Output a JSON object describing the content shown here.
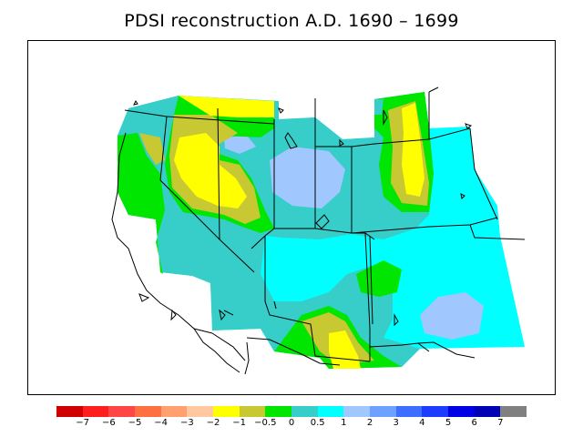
{
  "title": "PDSI reconstruction A.D. 1690 – 1699",
  "colorbar": {
    "colors": [
      "#d00000",
      "#ff1e1e",
      "#ff4646",
      "#ff7040",
      "#ffa070",
      "#ffc8a0",
      "#ffff00",
      "#c8c832",
      "#00e600",
      "#37cdc8",
      "#00ffff",
      "#a0c8ff",
      "#6ea0ff",
      "#3c6eff",
      "#1e3cff",
      "#0000e6",
      "#0000b4",
      "#808080"
    ],
    "labels": [
      "−7",
      "−6",
      "−5",
      "−4",
      "−3",
      "−2",
      "−1",
      "−0.5",
      "0",
      "0.5",
      "1",
      "2",
      "3",
      "4",
      "5",
      "6",
      "7"
    ]
  }
}
